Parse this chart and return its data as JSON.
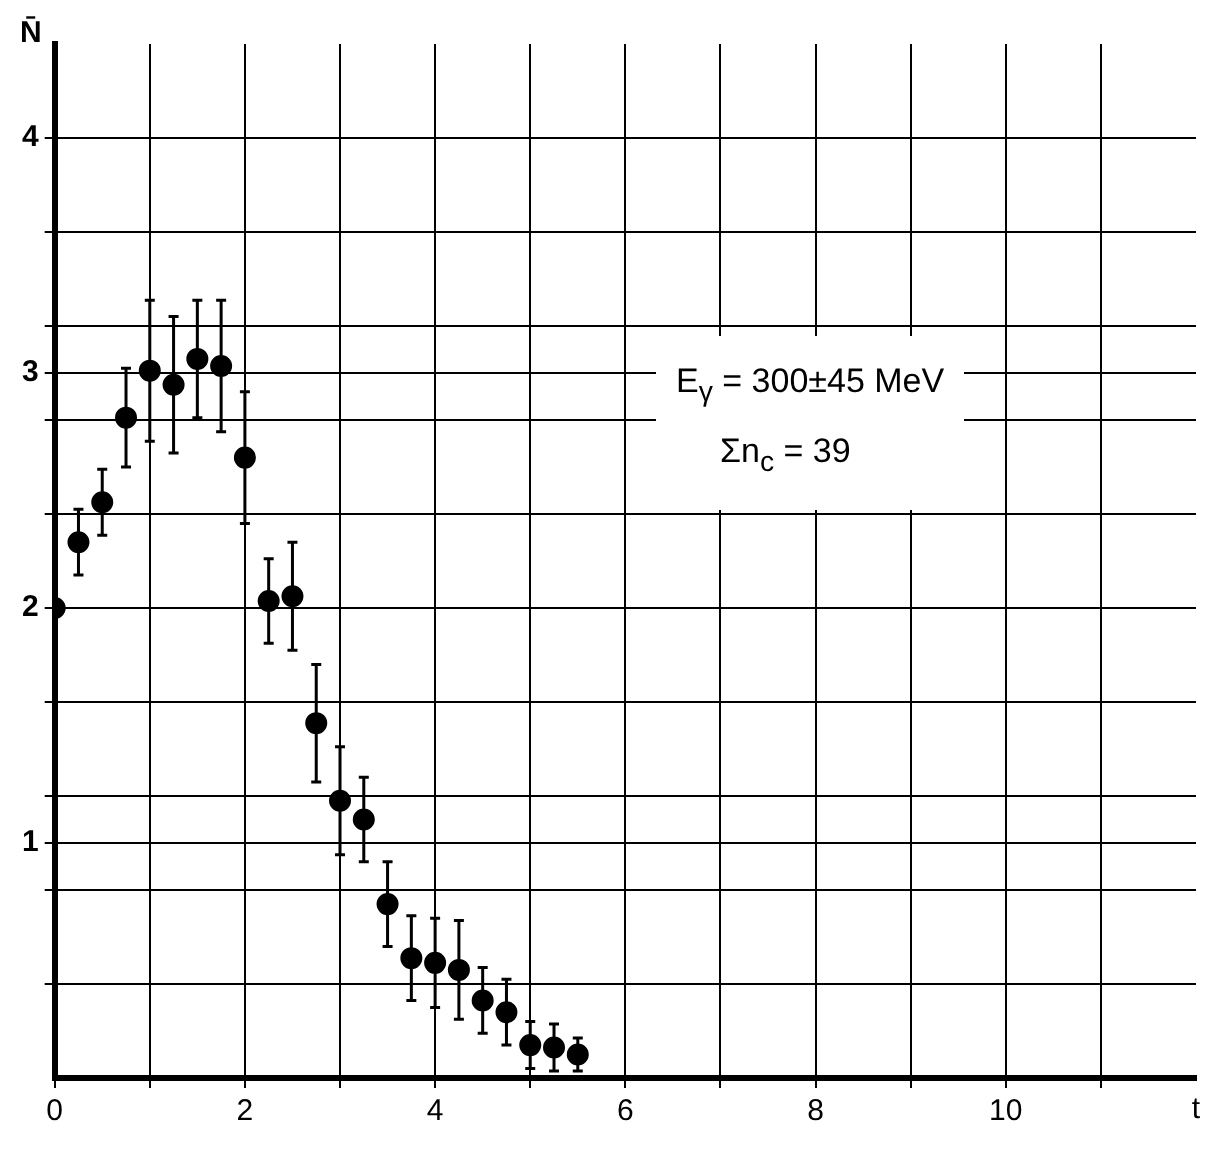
{
  "chart_data": {
    "type": "scatter",
    "xlabel": "t",
    "ylabel": "N̄",
    "annotations": [
      "E$_{γ}$ = 300±45 MeV",
      "Σn$_{c}$ = 39"
    ],
    "series": [
      {
        "color": "#000000",
        "x": [
          0,
          0.25,
          0.5,
          0.75,
          1,
          1.25,
          1.5,
          1.75,
          2,
          2.25,
          2.5,
          2.75,
          3,
          3.25,
          3.5,
          3.75,
          4,
          4.25,
          4.5,
          4.75,
          5,
          5.25,
          5.5
        ],
        "values": [
          2.0,
          2.28,
          2.45,
          2.81,
          3.01,
          2.95,
          3.06,
          3.03,
          2.64,
          2.03,
          2.05,
          1.51,
          1.18,
          1.1,
          0.74,
          0.51,
          0.49,
          0.46,
          0.33,
          0.28,
          0.14,
          0.13,
          0.1
        ],
        "errors": [
          null,
          0.14,
          0.14,
          0.21,
          0.3,
          0.29,
          0.25,
          0.28,
          0.28,
          0.18,
          0.23,
          0.25,
          0.23,
          0.18,
          0.18,
          0.18,
          0.19,
          0.21,
          0.14,
          0.14,
          0.1,
          0.1,
          0.07
        ]
      }
    ],
    "xlim": [
      0,
      12
    ],
    "ylim": [
      0,
      4.4
    ],
    "xticks": [
      0,
      {
        "value": 1,
        "label": null
      },
      2,
      {
        "value": 3,
        "label": null
      },
      4,
      {
        "value": 5,
        "label": null
      },
      6,
      {
        "value": 7,
        "label": null
      },
      8,
      {
        "value": 9,
        "label": null
      },
      10,
      {
        "value": 11,
        "label": null
      }
    ],
    "yticks": [
      {
        "value": 0.4,
        "label": null
      },
      {
        "value": 0.8,
        "label": null
      },
      1,
      {
        "value": 1.2,
        "label": null
      },
      {
        "value": 1.6,
        "label": null
      },
      2,
      {
        "value": 2.4,
        "label": null
      },
      {
        "value": 2.8,
        "label": null
      },
      3,
      {
        "value": 3.2,
        "label": null
      },
      {
        "value": 3.6,
        "label": null
      },
      4
    ],
    "grid": true,
    "legend": false,
    "marker": "circle"
  }
}
